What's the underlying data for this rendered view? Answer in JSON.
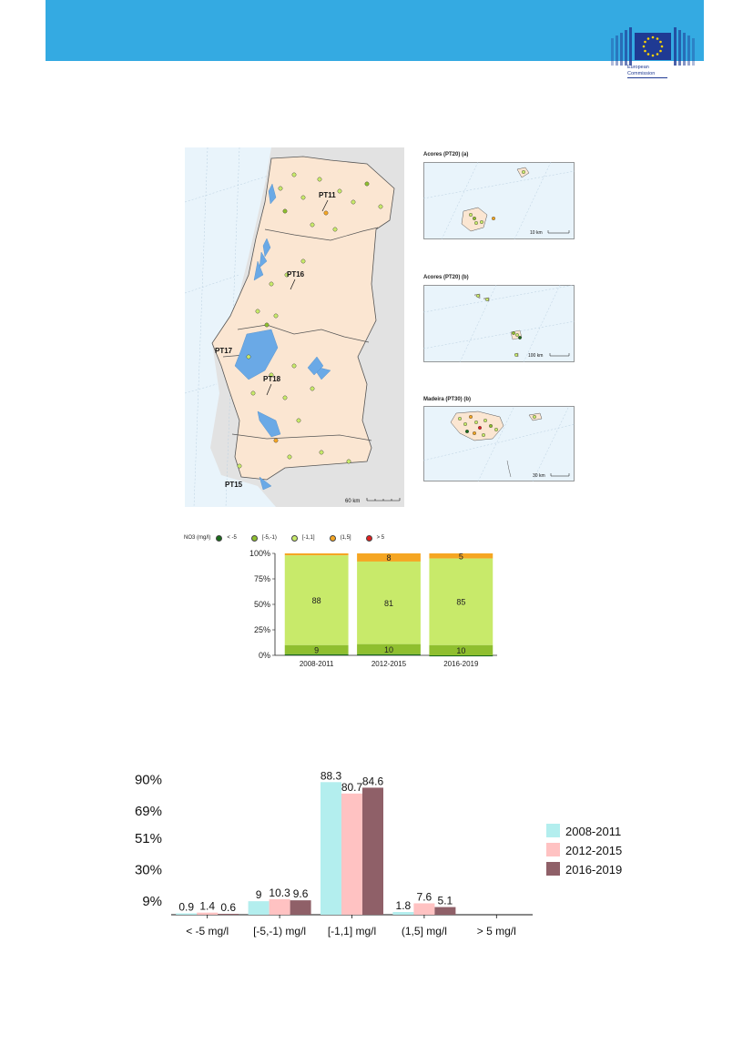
{
  "header": {
    "logo": {
      "name": "european-commission-logo",
      "text_line1": "European",
      "text_line2": "Commission"
    }
  },
  "map": {
    "regions": [
      "PT11",
      "PT16",
      "PT17",
      "PT18",
      "PT15"
    ],
    "scale_label": "60 km",
    "insets": [
      {
        "title": "Acores (PT20) (a)",
        "scale_label": "10 km"
      },
      {
        "title": "Acores (PT20) (b)",
        "scale_label": "100 km"
      },
      {
        "title": "Madeira (PT30) (b)",
        "scale_label": "30 km"
      }
    ],
    "colors": {
      "land": "#fbe6d2",
      "sea": "#e9f4fb",
      "outside": "#e2e2e2",
      "water": "#6aa9e6"
    }
  },
  "legend": {
    "title": "NO3 (mg/l)",
    "items": [
      {
        "label": "< -5",
        "color": "#1a6b1a"
      },
      {
        "label": "[-5,-1)",
        "color": "#8fbf2f"
      },
      {
        "label": "[-1,1]",
        "color": "#c8ea6a"
      },
      {
        "label": "(1,5]",
        "color": "#f5a623"
      },
      {
        "label": "> 5",
        "color": "#e02020"
      }
    ]
  },
  "chart_data": [
    {
      "type": "bar",
      "stacked": true,
      "categories": [
        "2008-2011",
        "2012-2015",
        "2016-2019"
      ],
      "series": [
        {
          "name": "< -5",
          "values": [
            1,
            1,
            1
          ],
          "color": "#1a6b1a"
        },
        {
          "name": "[-5,-1)",
          "values": [
            9,
            10,
            10
          ],
          "color": "#8fbf2f"
        },
        {
          "name": "[-1,1]",
          "values": [
            88,
            81,
            85
          ],
          "color": "#c8ea6a"
        },
        {
          "name": "(1,5]",
          "values": [
            2,
            8,
            5
          ],
          "color": "#f5a623"
        },
        {
          "name": "> 5",
          "values": [
            0,
            0,
            0
          ],
          "color": "#e02020"
        }
      ],
      "data_labels": [
        {
          "category": "2008-2011",
          "series": "[-5,-1)",
          "text": "9"
        },
        {
          "category": "2012-2015",
          "series": "[-5,-1)",
          "text": "10"
        },
        {
          "category": "2016-2019",
          "series": "[-5,-1)",
          "text": "10"
        },
        {
          "category": "2008-2011",
          "series": "[-1,1]",
          "text": "88"
        },
        {
          "category": "2012-2015",
          "series": "[-1,1]",
          "text": "81"
        },
        {
          "category": "2016-2019",
          "series": "[-1,1]",
          "text": "85"
        },
        {
          "category": "2012-2015",
          "series": "(1,5]",
          "text": "8"
        },
        {
          "category": "2016-2019",
          "series": "(1,5]",
          "text": "5"
        }
      ],
      "y_ticks": [
        "0%",
        "25%",
        "50%",
        "75%",
        "100%"
      ],
      "ylim": [
        0,
        100
      ]
    },
    {
      "type": "bar",
      "categories": [
        "< -5 mg/l",
        "[-5,-1) mg/l",
        "[-1,1] mg/l",
        "(1,5] mg/l",
        "> 5 mg/l"
      ],
      "series": [
        {
          "name": "2008-2011",
          "values": [
            0.9,
            9,
            88.3,
            1.8,
            null
          ],
          "labels": [
            "0.9",
            "9",
            "88.3",
            "1.8",
            ""
          ],
          "color": "#b3eeee"
        },
        {
          "name": "2012-2015",
          "values": [
            1.4,
            10.3,
            80.7,
            7.6,
            null
          ],
          "labels": [
            "1.4",
            "10.3",
            "80.7",
            "7.6",
            ""
          ],
          "color": "#ffc2c2"
        },
        {
          "name": "2016-2019",
          "values": [
            0.6,
            9.6,
            84.6,
            5.1,
            null
          ],
          "labels": [
            "0.6",
            "9.6",
            "84.6",
            "5.1",
            ""
          ],
          "color": "#8f6068"
        }
      ],
      "y_ticks": [
        {
          "label": "9%",
          "value": 9
        },
        {
          "label": "30%",
          "value": 30
        },
        {
          "label": "51%",
          "value": 51
        },
        {
          "label": "69%",
          "value": 69
        },
        {
          "label": "90%",
          "value": 90
        }
      ],
      "ylim": [
        0,
        100
      ],
      "legend_position": "right"
    }
  ]
}
